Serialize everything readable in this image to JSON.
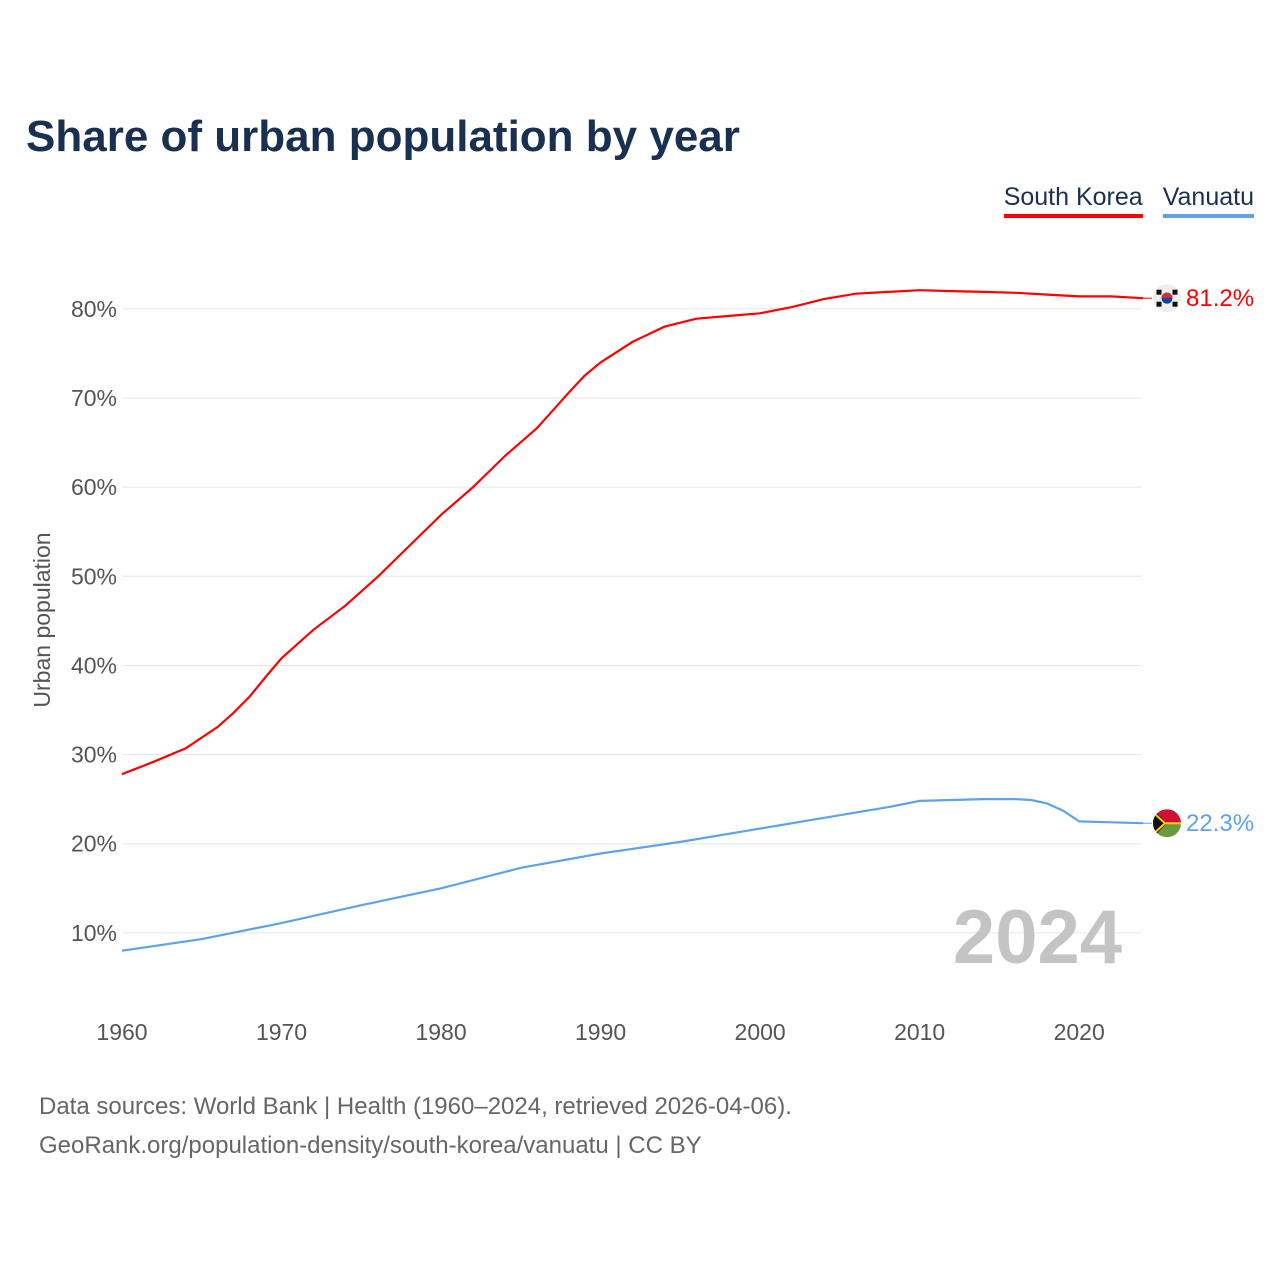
{
  "title": "Share of urban population by year",
  "legend": [
    {
      "name": "South Korea",
      "color": "#ff0000"
    },
    {
      "name": "Vanuatu",
      "color": "#5ea3e8"
    }
  ],
  "year_watermark": "2024",
  "footer": {
    "line1": "Data sources: World Bank | Health (1960–2024, retrieved 2026-04-06).",
    "line2": "GeoRank.org/population-density/south-korea/vanuatu | CC BY"
  },
  "chart_data": {
    "type": "line",
    "title": "Share of urban population by year",
    "xlabel": "",
    "ylabel": "Urban population",
    "xlim": [
      1960,
      2024
    ],
    "ylim": [
      0,
      85
    ],
    "grid": true,
    "legend_position": "top-right",
    "x_ticks": [
      1960,
      1970,
      1980,
      1990,
      2000,
      2010,
      2020
    ],
    "x_tick_labels": [
      "1960",
      "1970",
      "1980",
      "1990",
      "2000",
      "2010",
      "2020"
    ],
    "y_ticks": [
      10,
      20,
      30,
      40,
      50,
      60,
      70,
      80
    ],
    "y_tick_labels": [
      "10%",
      "20%",
      "30%",
      "40%",
      "50%",
      "60%",
      "70%",
      "80%"
    ],
    "series": [
      {
        "name": "South Korea",
        "color": "#ff0000",
        "end_label": "81.2%",
        "flag": "south-korea-flag",
        "x": [
          1960,
          1962,
          1964,
          1966,
          1967,
          1968,
          1969,
          1970,
          1972,
          1974,
          1976,
          1978,
          1980,
          1982,
          1984,
          1986,
          1988,
          1989,
          1990,
          1992,
          1994,
          1996,
          1998,
          2000,
          2002,
          2004,
          2006,
          2008,
          2010,
          2012,
          2014,
          2016,
          2018,
          2020,
          2022,
          2024
        ],
        "y": [
          27.8,
          29.2,
          30.7,
          33.1,
          34.7,
          36.5,
          38.7,
          40.8,
          44.0,
          46.7,
          49.9,
          53.4,
          56.9,
          60.0,
          63.5,
          66.6,
          70.6,
          72.5,
          74.0,
          76.3,
          78.0,
          78.9,
          79.2,
          79.5,
          80.2,
          81.1,
          81.7,
          81.9,
          82.1,
          82.0,
          81.9,
          81.8,
          81.6,
          81.4,
          81.4,
          81.2
        ]
      },
      {
        "name": "Vanuatu",
        "color": "#5ea3e8",
        "end_label": "22.3%",
        "flag": "vanuatu-flag",
        "x": [
          1960,
          1965,
          1970,
          1975,
          1980,
          1985,
          1990,
          1995,
          2000,
          2005,
          2008,
          2010,
          2012,
          2014,
          2016,
          2017,
          2018,
          2019,
          2020,
          2022,
          2024
        ],
        "y": [
          8.0,
          9.3,
          11.1,
          13.1,
          15.0,
          17.3,
          18.9,
          20.2,
          21.7,
          23.2,
          24.1,
          24.8,
          24.9,
          25.0,
          25.0,
          24.9,
          24.5,
          23.7,
          22.5,
          22.4,
          22.3
        ]
      }
    ]
  }
}
